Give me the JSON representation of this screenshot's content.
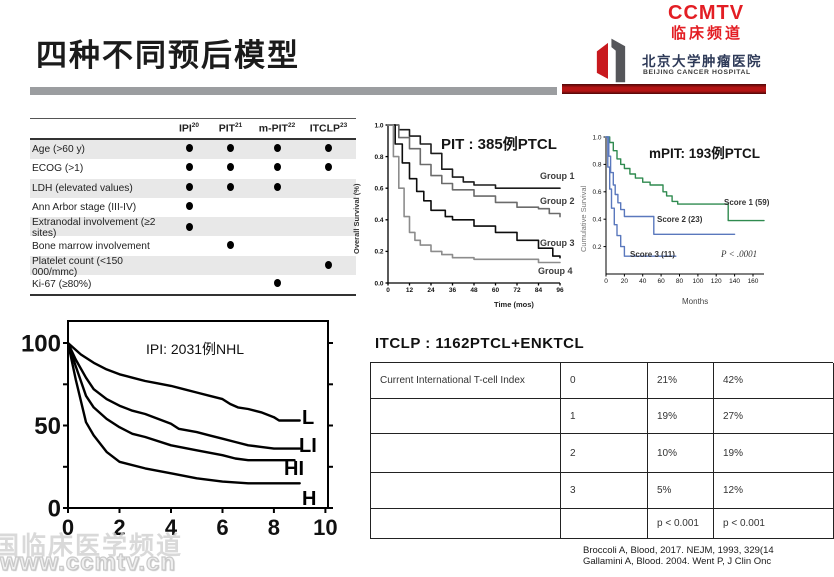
{
  "header": {
    "title": "四种不同预后模型",
    "brand": {
      "name": "CCMTV",
      "subtitle": "临床频道",
      "hospital_cn": "北京大学肿瘤医院",
      "hospital_en": "BEIJING CANCER HOSPITAL"
    },
    "accent_red": "#b41414",
    "accent_gray": "#9b9da0"
  },
  "criteria_table": {
    "columns": [
      {
        "label": "IPI",
        "sup": "20"
      },
      {
        "label": "PIT",
        "sup": "21"
      },
      {
        "label": "m-PIT",
        "sup": "22"
      },
      {
        "label": "ITCLP",
        "sup": "23"
      }
    ],
    "rows": [
      {
        "label": "Age (>60 y)",
        "dots": [
          true,
          true,
          true,
          true
        ]
      },
      {
        "label": "ECOG (>1)",
        "dots": [
          true,
          true,
          true,
          true
        ]
      },
      {
        "label": "LDH (elevated values)",
        "dots": [
          true,
          true,
          true,
          false
        ]
      },
      {
        "label": "Ann Arbor stage (III-IV)",
        "dots": [
          true,
          false,
          false,
          false
        ]
      },
      {
        "label": "Extranodal involvement (≥2 sites)",
        "dots": [
          true,
          false,
          false,
          false
        ]
      },
      {
        "label": "Bone marrow involvement",
        "dots": [
          false,
          true,
          false,
          false
        ]
      },
      {
        "label": "Platelet count (<150 000/mmc)",
        "dots": [
          false,
          false,
          false,
          true
        ]
      },
      {
        "label": "Ki-67 (≥80%)",
        "dots": [
          false,
          false,
          true,
          false
        ]
      }
    ]
  },
  "chart_data": [
    {
      "id": "pit",
      "type": "line",
      "step": true,
      "title": "PIT : 385例PTCL",
      "xlabel": "Time (mos)",
      "ylabel": "Overall Survival (%)",
      "xlim": [
        0,
        96
      ],
      "ylim": [
        0,
        1
      ],
      "xticks": [
        [
          0,
          "0"
        ],
        [
          12,
          "12"
        ],
        [
          24,
          "24"
        ],
        [
          36,
          "36"
        ],
        [
          48,
          "48"
        ],
        [
          60,
          "60"
        ],
        [
          72,
          "72"
        ],
        [
          84,
          "84"
        ],
        [
          96,
          "96"
        ]
      ],
      "yticks": [
        [
          0,
          "0.0"
        ],
        [
          0.2,
          "0.2"
        ],
        [
          0.4,
          "0.4"
        ],
        [
          0.6,
          "0.6"
        ],
        [
          0.8,
          "0.8"
        ],
        [
          1,
          "1.0"
        ]
      ],
      "grid": false,
      "legend_position": "right-of-curves",
      "series": [
        {
          "name": "Group 1",
          "color": "#1c1c1c",
          "x": [
            0,
            6,
            12,
            18,
            24,
            30,
            36,
            42,
            48,
            60,
            96
          ],
          "y": [
            1,
            0.97,
            0.93,
            0.88,
            0.82,
            0.72,
            0.67,
            0.64,
            0.62,
            0.6,
            0.6
          ]
        },
        {
          "name": "Group 2",
          "color": "#6b6b6b",
          "x": [
            0,
            6,
            12,
            18,
            24,
            30,
            36,
            48,
            60,
            72,
            84,
            90,
            96
          ],
          "y": [
            1,
            0.92,
            0.85,
            0.75,
            0.68,
            0.63,
            0.59,
            0.55,
            0.51,
            0.48,
            0.47,
            0.44,
            0.42
          ]
        },
        {
          "name": "Group 3",
          "color": "#0d0d0d",
          "x": [
            0,
            4,
            8,
            12,
            16,
            20,
            24,
            32,
            36,
            48,
            60,
            72,
            84,
            92,
            96
          ],
          "y": [
            1,
            0.88,
            0.76,
            0.66,
            0.58,
            0.52,
            0.46,
            0.42,
            0.4,
            0.36,
            0.32,
            0.27,
            0.22,
            0.17,
            0.16
          ]
        },
        {
          "name": "Group 4",
          "color": "#8c8c8c",
          "x": [
            0,
            3,
            6,
            9,
            12,
            15,
            18,
            24,
            30,
            36,
            48,
            80,
            84,
            96
          ],
          "y": [
            1,
            0.8,
            0.6,
            0.42,
            0.32,
            0.27,
            0.24,
            0.2,
            0.18,
            0.16,
            0.15,
            0.15,
            0.13,
            0.13
          ]
        }
      ]
    },
    {
      "id": "mpit",
      "type": "line",
      "step": true,
      "title": "mPIT: 193例PTCL",
      "xlabel": "Months",
      "ylabel": "Cumulative Survival",
      "annotation": "P < .0001",
      "xlim": [
        0,
        172
      ],
      "ylim": [
        0,
        1
      ],
      "xticks": [
        [
          0,
          "0"
        ],
        [
          20,
          "20"
        ],
        [
          40,
          "40"
        ],
        [
          60,
          "60"
        ],
        [
          80,
          "80"
        ],
        [
          100,
          "100"
        ],
        [
          120,
          "120"
        ],
        [
          140,
          "140"
        ],
        [
          160,
          "160"
        ]
      ],
      "yticks": [
        [
          0.2,
          "0.2"
        ],
        [
          0.4,
          "0.4"
        ],
        [
          0.6,
          "0.6"
        ],
        [
          0.8,
          "0.8"
        ],
        [
          1,
          "1.0"
        ]
      ],
      "grid": false,
      "legend_position": "inline-labels",
      "series": [
        {
          "name": "Score 1 (59)",
          "color": "#2f8a4f",
          "x": [
            0,
            4,
            8,
            12,
            16,
            20,
            26,
            32,
            40,
            48,
            58,
            62,
            66,
            72,
            78,
            130,
            133,
            172
          ],
          "y": [
            1,
            0.96,
            0.9,
            0.84,
            0.8,
            0.77,
            0.73,
            0.7,
            0.67,
            0.65,
            0.65,
            0.6,
            0.57,
            0.53,
            0.51,
            0.51,
            0.39,
            0.39
          ]
        },
        {
          "name": "Score 2  (23)",
          "color": "#5a78bd",
          "x": [
            0,
            3,
            5,
            8,
            10,
            13,
            16,
            20,
            50,
            52,
            140
          ],
          "y": [
            1,
            0.86,
            0.74,
            0.65,
            0.58,
            0.52,
            0.47,
            0.42,
            0.42,
            0.29,
            0.29
          ]
        },
        {
          "name": "Score 3 (11)",
          "color": "#5a78bd",
          "x": [
            0,
            2,
            4,
            6,
            9,
            12,
            16,
            20,
            76
          ],
          "y": [
            1,
            0.78,
            0.62,
            0.48,
            0.36,
            0.28,
            0.2,
            0.13,
            0.13
          ]
        }
      ]
    },
    {
      "id": "ipi",
      "type": "line",
      "step": false,
      "title": "IPI: 2031例NHL",
      "xlabel": "",
      "ylabel": "",
      "xlim": [
        0,
        10.1
      ],
      "ylim": [
        0,
        100
      ],
      "xticks": [
        [
          0,
          "0"
        ],
        [
          2,
          "2"
        ],
        [
          4,
          "4"
        ],
        [
          6,
          "6"
        ],
        [
          8,
          "8"
        ],
        [
          10,
          "10"
        ]
      ],
      "yticks": [
        [
          0,
          "0"
        ],
        [
          50,
          "50"
        ],
        [
          100,
          "100"
        ]
      ],
      "yticks_minor": [
        25,
        75
      ],
      "grid": false,
      "legend_position": "inline-labels",
      "series": [
        {
          "name": "L",
          "color": "#000000",
          "x": [
            0,
            0.5,
            1,
            1.5,
            2,
            2.5,
            3,
            3.5,
            4,
            4.5,
            5,
            5.5,
            6,
            6.3,
            6.6,
            7,
            7.5,
            8,
            8.2,
            8.5,
            9
          ],
          "y": [
            100,
            93,
            88,
            84,
            81,
            79,
            77,
            75.5,
            74,
            72,
            70,
            68,
            66,
            63,
            61,
            60,
            58,
            55,
            53,
            53,
            53
          ]
        },
        {
          "name": "LI",
          "color": "#000000",
          "x": [
            0,
            0.3,
            0.7,
            1,
            1.5,
            2,
            2.5,
            3,
            3.5,
            4,
            4.3,
            5,
            5.5,
            6,
            6.5,
            7,
            7.5,
            8,
            9
          ],
          "y": [
            100,
            90,
            79,
            72,
            66,
            62,
            59,
            57,
            54,
            51,
            48,
            46,
            44,
            42,
            40,
            38,
            37,
            36,
            36
          ]
        },
        {
          "name": "HI",
          "color": "#000000",
          "x": [
            0,
            0.3,
            0.7,
            1,
            1.5,
            2,
            2.5,
            3,
            4,
            5,
            6,
            6.5,
            7,
            8,
            8.8
          ],
          "y": [
            100,
            86,
            68,
            61,
            54,
            49,
            45,
            43,
            38,
            35,
            32,
            30,
            29,
            29,
            29
          ]
        },
        {
          "name": "H",
          "color": "#000000",
          "x": [
            0,
            0.3,
            0.7,
            1,
            1.5,
            2,
            3,
            4,
            5,
            6,
            7,
            8,
            9
          ],
          "y": [
            100,
            78,
            52,
            44,
            34,
            28,
            24,
            21,
            18,
            16,
            15,
            15,
            15
          ]
        }
      ]
    }
  ],
  "itclp": {
    "title": "ITCLP : 1162PTCL+ENKTCL",
    "rows": [
      [
        "Current International T-cell Index",
        "0",
        "21%",
        "42%"
      ],
      [
        "",
        "1",
        "19%",
        "27%"
      ],
      [
        "",
        "2",
        "10%",
        "19%"
      ],
      [
        "",
        "3",
        "5%",
        "12%"
      ],
      [
        "",
        "",
        "p < 0.001",
        "p < 0.001"
      ]
    ]
  },
  "citations": [
    "Broccoli A, Blood, 2017. NEJM, 1993, 329(14",
    "Gallamini A, Blood. 2004. Went P, J Clin Onc"
  ],
  "watermark": {
    "line1": "国临床医学频道",
    "line2": "www.ccmtv.cn"
  }
}
